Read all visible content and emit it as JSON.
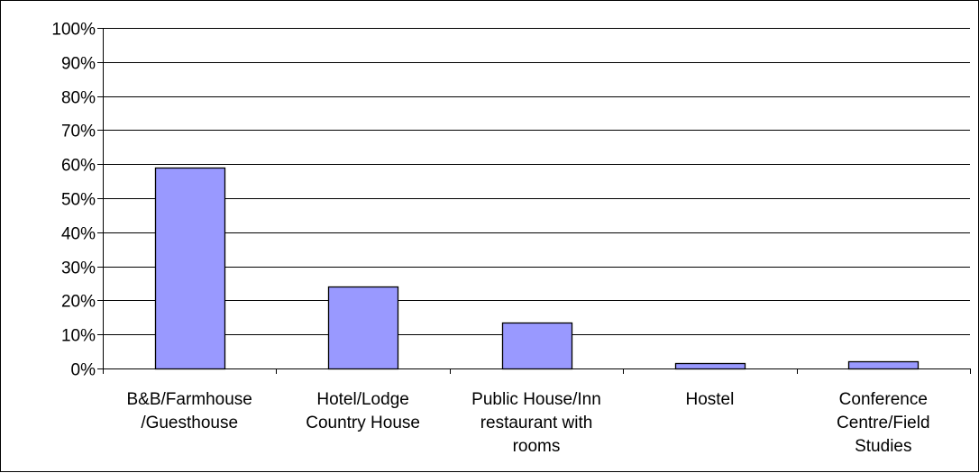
{
  "chart_data": {
    "type": "bar",
    "title": "",
    "xlabel": "",
    "ylabel": "",
    "categories": [
      [
        "B&B/Farmhouse",
        "/Guesthouse"
      ],
      [
        "Hotel/Lodge",
        "Country House"
      ],
      [
        "Public House/Inn",
        "restaurant with",
        "rooms"
      ],
      [
        "Hostel"
      ],
      [
        "Conference",
        "Centre/Field",
        "Studies"
      ]
    ],
    "values": [
      59,
      24,
      13.5,
      1.5,
      2
    ],
    "ylim": [
      0,
      100
    ],
    "yticks": [
      0,
      10,
      20,
      30,
      40,
      50,
      60,
      70,
      80,
      90,
      100
    ],
    "ytick_labels": [
      "0%",
      "10%",
      "20%",
      "30%",
      "40%",
      "50%",
      "60%",
      "70%",
      "80%",
      "90%",
      "100%"
    ],
    "grid": true,
    "legend": "none",
    "colors": {
      "bar_fill": "#9999ff",
      "bar_stroke": "#000000",
      "grid": "#000000",
      "axis": "#000000"
    }
  }
}
